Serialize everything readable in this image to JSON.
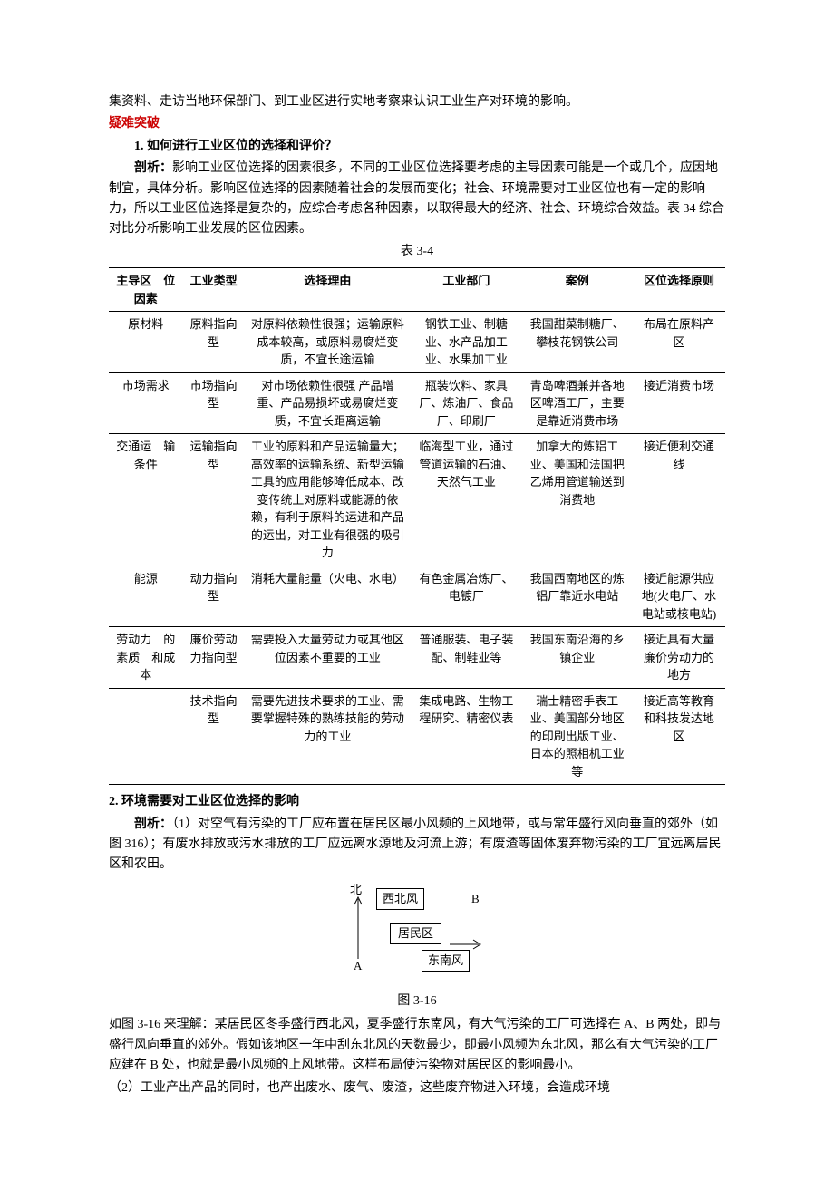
{
  "intro_line": "集资料、走访当地环保部门、到工业区进行实地考察来认识工业生产对环境的影响。",
  "breakthrough_head": "疑难突破",
  "q1_num": "1. 如何进行工业区位的选择和评价？",
  "q1_label": "剖析：",
  "q1_body": "影响工业区位选择的因素很多，不同的工业区位选择要考虑的主导因素可能是一个或几个，应因地制宜，具体分析。影响区位选择的因素随着社会的发展而变化；社会、环境需要对工业区位也有一定的影响力，所以工业区位选择是复杂的，应综合考虑各种因素，以取得最大的经济、社会、环境综合效益。表 34 综合对比分析影响工业发展的区位因素。",
  "table_caption": "表 3-4",
  "table": {
    "columns": [
      "主导区　位因素",
      "工业类型",
      "选择理由",
      "工业部门",
      "案例",
      "区位选择原则"
    ],
    "rows": [
      [
        "原材料",
        "原料指向型",
        "对原料依赖性很强；运输原料成本较高，或原料易腐烂变质，不宜长途运输",
        "钢铁工业、制糖业、水产品加工业、水果加工业",
        "我国甜菜制糖厂、攀枝花钢铁公司",
        "布局在原料产区"
      ],
      [
        "市场需求",
        "市场指向型",
        "对市场依赖性很强 产品增重、产品易损坏或易腐烂变质，不宜长距离运输",
        "瓶装饮料、家具厂、炼油厂、食品厂、印刷厂",
        "青岛啤酒兼并各地区啤酒工厂，主要是靠近消费市场",
        "接近消费市场"
      ],
      [
        "交通运　输条件",
        "运输指向型",
        "工业的原料和产品运输量大；高效率的运输系统、新型运输工具的应用能够降低成本、改变传统上对原料或能源的依赖，有利于原料的运进和产品的运出，对工业有很强的吸引力",
        "临海型工业，通过管道运输的石油、天然气工业",
        "加拿大的炼铝工业、美国和法国把乙烯用管道输送到消费地",
        "接近便利交通线"
      ],
      [
        "能源",
        "动力指向型",
        "消耗大量能量（火电、水电）",
        "有色金属冶炼厂、电镀厂",
        "我国西南地区的炼铝厂靠近水电站",
        "接近能源供应地(火电厂、水电站或核电站)"
      ],
      [
        "劳动力　的素质　和成本",
        "廉价劳动力指向型",
        "需要投入大量劳动力或其他区位因素不重要的工业",
        "普通服装、电子装配、制鞋业等",
        "我国东南沿海的乡镇企业",
        "接近具有大量廉价劳动力的地方"
      ],
      [
        "",
        "技术指向型",
        "需要先进技术要求的工业、需要掌握特殊的熟练技能的劳动力的工业",
        "集成电路、生物工程研究、精密仪表",
        "瑞士精密手表工业、美国部分地区的印刷出版工业、日本的照相机工业等",
        "接近高等教育和科技发达地区"
      ]
    ]
  },
  "q2_head": "2. 环境需要对工业区位选择的影响",
  "q2_label": "剖析：",
  "q2_p1": "（1）对空气有污染的工厂应布置在居民区最小风频的上风地带，或与常年盛行风向垂直的郊外（如图 316）；有废水排放或污水排放的工厂应远离水源地及河流上游；有废渣等固体废弃物污染的工厂宜远离居民区和农田。",
  "diagram": {
    "north": "北",
    "nw": "西北风",
    "res": "居民区",
    "se": "东南风",
    "A": "A",
    "B": "B"
  },
  "fig_caption": "图 3-16",
  "q2_p2": "如图 3-16 来理解：某居民区冬季盛行西北风，夏季盛行东南风，有大气污染的工厂可选择在 A、B 两处，即与盛行风向垂直的郊外。假如该地区一年中刮东北风的天数最少，即最小风频为东北风，那么有大气污染的工厂应建在 B 处，也就是最小风频的上风地带。这样布局使污染物对居民区的影响最小。",
  "q2_p3": "（2）工业产出产品的同时，也产出废水、废气、废渣，这些废弃物进入环境，会造成环境"
}
